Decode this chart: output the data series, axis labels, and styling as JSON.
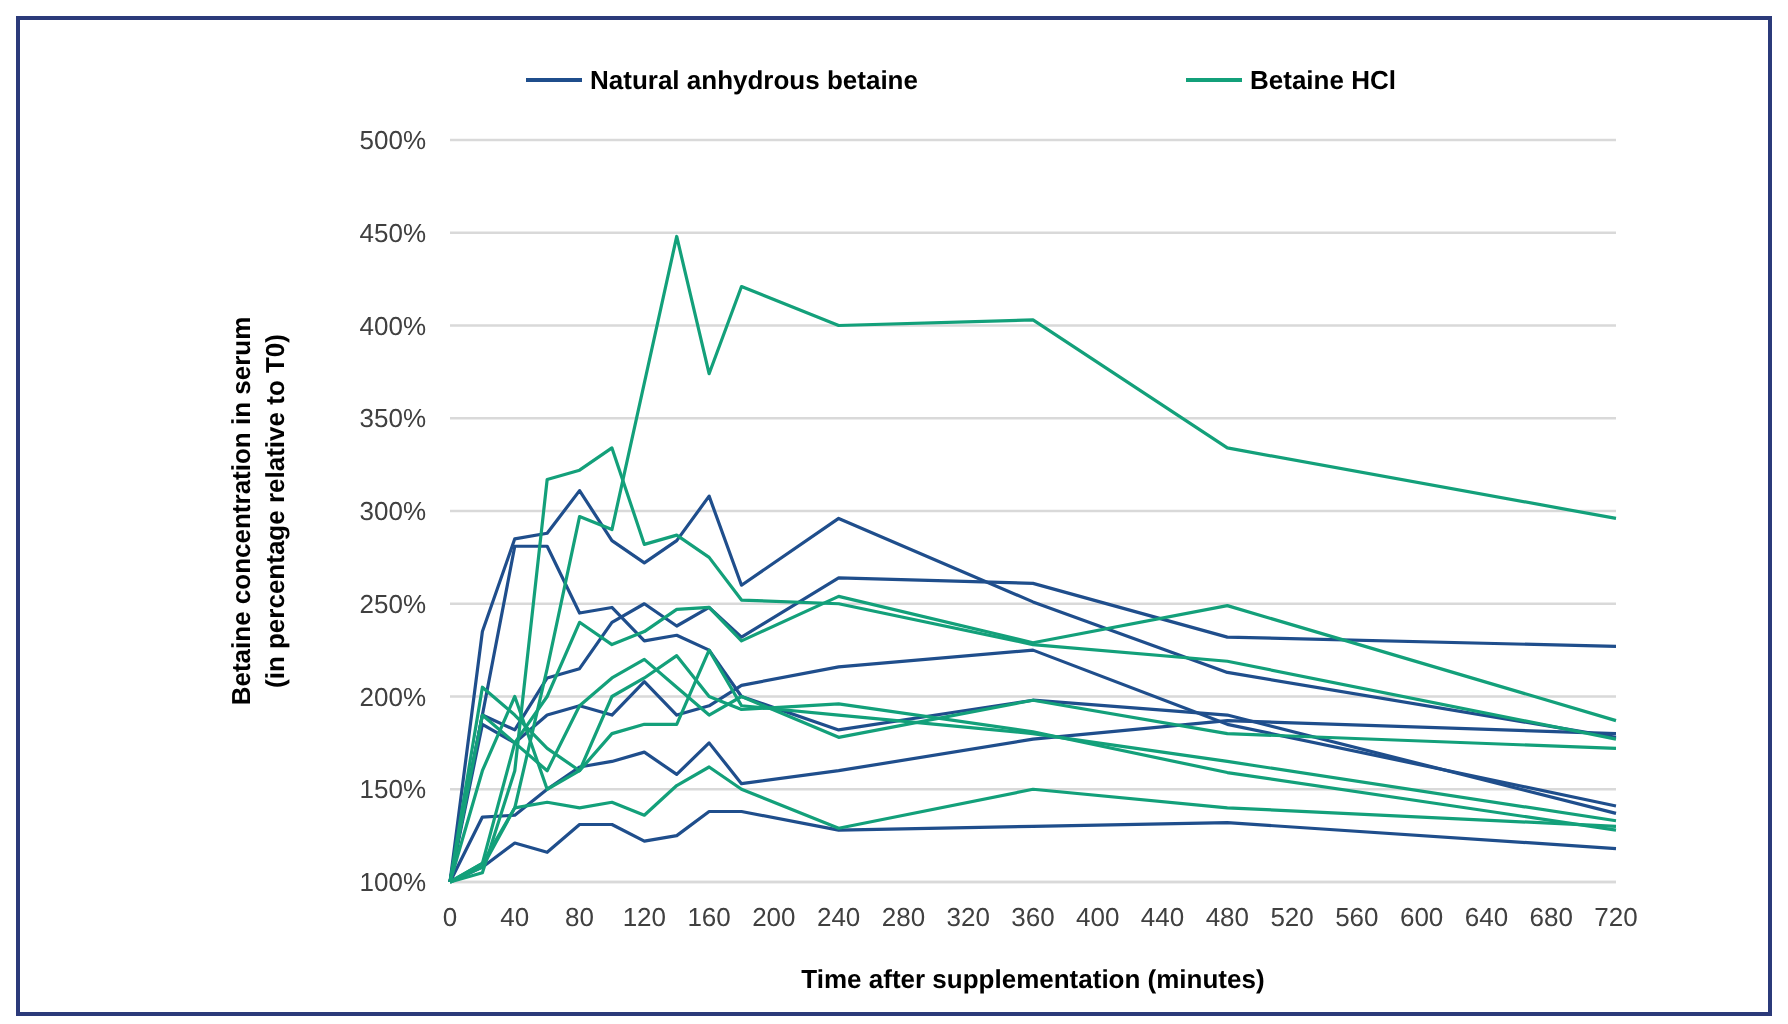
{
  "chart_data": {
    "type": "line",
    "xlabel": "Time after supplementation (minutes)",
    "ylabel": "Betaine concentration in serum\n(in percentage relative to T0)",
    "x": [
      0,
      20,
      40,
      60,
      80,
      100,
      120,
      140,
      160,
      180,
      240,
      360,
      480,
      720
    ],
    "xlim": [
      0,
      720
    ],
    "xticks": [
      0,
      40,
      80,
      120,
      160,
      200,
      240,
      280,
      320,
      360,
      400,
      440,
      480,
      520,
      560,
      600,
      640,
      680,
      720
    ],
    "ylim": [
      100,
      500
    ],
    "yticks": [
      {
        "value": 100,
        "label": "100%"
      },
      {
        "value": 150,
        "label": "150%"
      },
      {
        "value": 200,
        "label": "200%"
      },
      {
        "value": 250,
        "label": "250%"
      },
      {
        "value": 300,
        "label": "300%"
      },
      {
        "value": 350,
        "label": "350%"
      },
      {
        "value": 400,
        "label": "400%"
      },
      {
        "value": 450,
        "label": "450%"
      },
      {
        "value": 500,
        "label": "500%"
      }
    ],
    "grid": "y",
    "legend": "top",
    "marker": "none",
    "line_style": "solid",
    "series": [
      {
        "name": "Natural anhydrous betaine",
        "color": "#1f4e8c",
        "values": [
          100,
          235,
          285,
          288,
          311,
          284,
          272,
          284,
          308,
          260,
          296,
          251,
          213,
          178
        ]
      },
      {
        "color": "#1f4e8c",
        "values": [
          100,
          190,
          281,
          281,
          245,
          248,
          230,
          233,
          225,
          200,
          182,
          198,
          190,
          137
        ]
      },
      {
        "color": "#1f4e8c",
        "values": [
          100,
          190,
          182,
          210,
          215,
          240,
          250,
          238,
          248,
          232,
          264,
          261,
          232,
          227
        ]
      },
      {
        "color": "#1f4e8c",
        "values": [
          100,
          185,
          175,
          190,
          195,
          190,
          208,
          190,
          195,
          206,
          216,
          225,
          185,
          141
        ]
      },
      {
        "color": "#1f4e8c",
        "values": [
          100,
          135,
          136,
          150,
          162,
          165,
          170,
          158,
          175,
          153,
          160,
          177,
          187,
          180
        ]
      },
      {
        "color": "#1f4e8c",
        "values": [
          100,
          108,
          121,
          116,
          131,
          131,
          122,
          125,
          138,
          138,
          128,
          130,
          132,
          118
        ]
      },
      {
        "name": "Betaine HCl",
        "color": "#13a07a",
        "x": [
          0,
          20,
          40,
          60,
          80,
          100,
          140,
          160,
          180,
          240,
          360,
          480,
          720
        ],
        "values": [
          100,
          108,
          140,
          215,
          297,
          290,
          448,
          374,
          421,
          400,
          403,
          334,
          296
        ]
      },
      {
        "color": "#13a07a",
        "values": [
          100,
          105,
          160,
          317,
          322,
          334,
          282,
          287,
          275,
          252,
          250,
          228,
          219,
          177
        ]
      },
      {
        "color": "#13a07a",
        "values": [
          100,
          110,
          175,
          200,
          240,
          228,
          235,
          247,
          248,
          230,
          254,
          229,
          249,
          187
        ]
      },
      {
        "color": "#13a07a",
        "values": [
          100,
          205,
          190,
          172,
          160,
          200,
          210,
          222,
          200,
          193,
          196,
          181,
          159,
          128
        ]
      },
      {
        "color": "#13a07a",
        "values": [
          100,
          190,
          175,
          160,
          195,
          210,
          220,
          205,
          190,
          200,
          178,
          198,
          180,
          172
        ]
      },
      {
        "color": "#13a07a",
        "values": [
          100,
          110,
          140,
          143,
          140,
          143,
          136,
          152,
          162,
          150,
          129,
          150,
          140,
          130
        ]
      },
      {
        "color": "#13a07a",
        "values": [
          100,
          160,
          200,
          150,
          160,
          180,
          185,
          185,
          225,
          195,
          190,
          180,
          165,
          133
        ]
      }
    ]
  }
}
